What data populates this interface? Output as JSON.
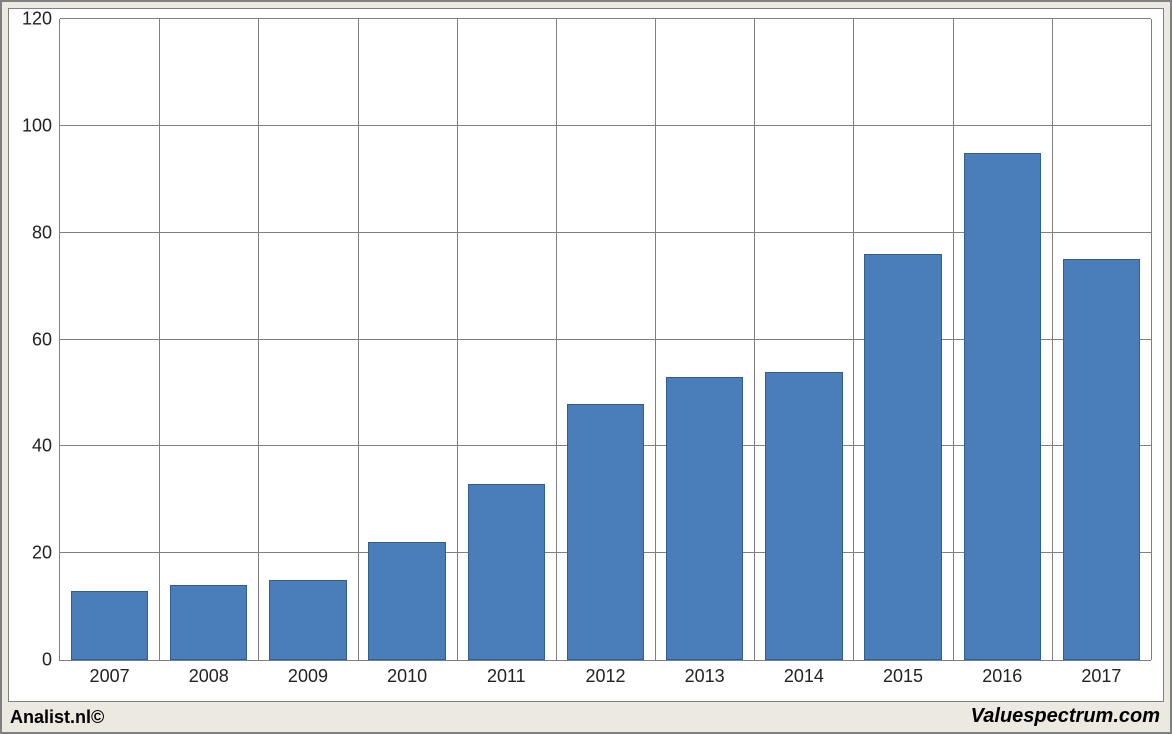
{
  "chart": {
    "type": "bar",
    "categories": [
      "2007",
      "2008",
      "2009",
      "2010",
      "2011",
      "2012",
      "2013",
      "2014",
      "2015",
      "2016",
      "2017"
    ],
    "values": [
      13,
      14,
      15,
      22,
      33,
      48,
      53,
      54,
      76,
      95,
      75
    ],
    "bar_color": "#4a7ebb",
    "bar_border_color": "#2f5f91",
    "ylim_min": 0,
    "ylim_max": 120,
    "ytick_step": 20,
    "y_ticks": [
      "0",
      "20",
      "40",
      "60",
      "80",
      "100",
      "120"
    ],
    "background_color": "#ffffff",
    "grid_color": "#7f7f7f",
    "outer_bg": "#ece9e0",
    "label_fontsize": 18,
    "bar_width_ratio": 0.78
  },
  "footer": {
    "left": "Analist.nl©",
    "right": "Valuespectrum.com"
  }
}
